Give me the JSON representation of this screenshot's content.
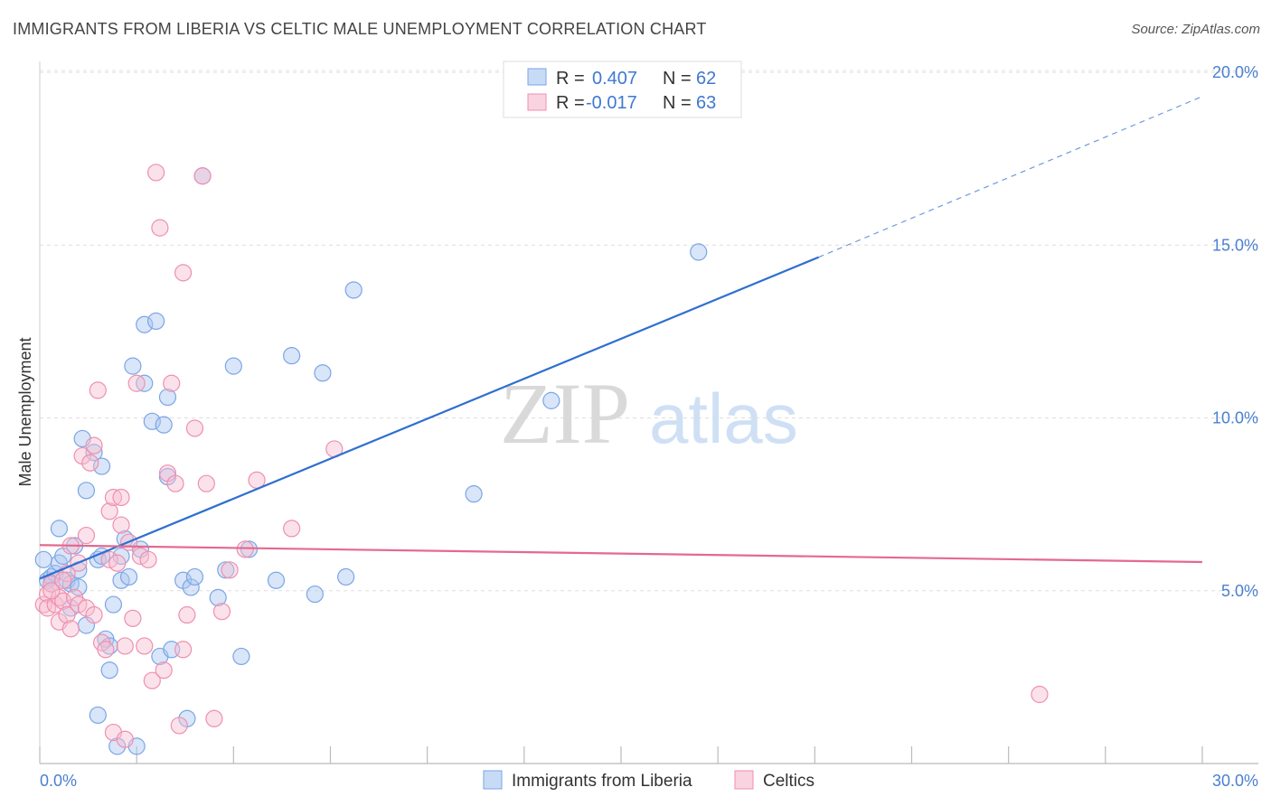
{
  "header": {
    "title": "IMMIGRANTS FROM LIBERIA VS CELTIC MALE UNEMPLOYMENT CORRELATION CHART",
    "source": "Source: ZipAtlas.com"
  },
  "watermark": {
    "zip": "ZIP",
    "atlas": "atlas"
  },
  "chart_data": {
    "type": "scatter",
    "ylabel": "Male Unemployment",
    "xlim": [
      0,
      30
    ],
    "ylim": [
      0,
      20
    ],
    "x_tick_labels": [
      "0.0%",
      "30.0%"
    ],
    "y_ticks": [
      5,
      10,
      15,
      20
    ],
    "y_tick_labels": [
      "5.0%",
      "10.0%",
      "15.0%",
      "20.0%"
    ],
    "grid": true,
    "legend_top": [
      {
        "r_label": "R =",
        "r_value": "0.407",
        "n_label": "N =",
        "n_value": "62",
        "color": "#7aa6e6"
      },
      {
        "r_label": "R =",
        "r_value": "-0.017",
        "n_label": "N =",
        "n_value": "63",
        "color": "#ef8fb0"
      }
    ],
    "series": [
      {
        "name": "Immigrants from Liberia",
        "fill": "#aac6f0",
        "stroke": "#7aa6e6",
        "line_color": "#2e6fd0",
        "trend": {
          "x0": 0,
          "y0": 5.35,
          "x1": 20.1,
          "y1": 14.65,
          "dash_to_x": 30,
          "dash_to_y": 19.3
        },
        "points": [
          [
            0.2,
            5.3
          ],
          [
            0.3,
            5.4
          ],
          [
            0.4,
            5.5
          ],
          [
            0.5,
            6.8
          ],
          [
            0.5,
            5.8
          ],
          [
            0.6,
            6.0
          ],
          [
            0.7,
            5.3
          ],
          [
            0.8,
            4.5
          ],
          [
            0.8,
            5.2
          ],
          [
            0.9,
            6.3
          ],
          [
            1.0,
            5.6
          ],
          [
            1.0,
            5.1
          ],
          [
            1.1,
            9.4
          ],
          [
            1.2,
            7.9
          ],
          [
            1.2,
            4.0
          ],
          [
            1.4,
            9.0
          ],
          [
            1.5,
            1.4
          ],
          [
            1.5,
            5.9
          ],
          [
            1.6,
            8.6
          ],
          [
            1.6,
            6.0
          ],
          [
            1.7,
            3.6
          ],
          [
            1.8,
            3.4
          ],
          [
            1.8,
            2.7
          ],
          [
            1.9,
            4.6
          ],
          [
            2.0,
            0.5
          ],
          [
            2.1,
            5.3
          ],
          [
            2.1,
            6.0
          ],
          [
            2.2,
            6.5
          ],
          [
            2.3,
            5.4
          ],
          [
            2.4,
            11.5
          ],
          [
            2.5,
            0.5
          ],
          [
            2.6,
            6.2
          ],
          [
            2.7,
            11.0
          ],
          [
            2.7,
            12.7
          ],
          [
            2.9,
            9.9
          ],
          [
            3.0,
            12.8
          ],
          [
            3.1,
            3.1
          ],
          [
            3.2,
            9.8
          ],
          [
            3.3,
            8.3
          ],
          [
            3.3,
            10.6
          ],
          [
            3.4,
            3.3
          ],
          [
            3.7,
            5.3
          ],
          [
            3.8,
            1.3
          ],
          [
            3.9,
            5.1
          ],
          [
            4.0,
            5.4
          ],
          [
            4.2,
            17.0
          ],
          [
            4.6,
            4.8
          ],
          [
            4.8,
            5.6
          ],
          [
            5.0,
            11.5
          ],
          [
            5.2,
            3.1
          ],
          [
            5.4,
            6.2
          ],
          [
            6.1,
            5.3
          ],
          [
            6.5,
            11.8
          ],
          [
            7.1,
            4.9
          ],
          [
            7.3,
            11.3
          ],
          [
            7.9,
            5.4
          ],
          [
            8.1,
            13.7
          ],
          [
            11.2,
            7.8
          ],
          [
            13.2,
            10.5
          ],
          [
            17.0,
            14.8
          ],
          [
            0.1,
            5.9
          ],
          [
            0.3,
            5.2
          ]
        ]
      },
      {
        "name": "Celtics",
        "fill": "#f7bfd1",
        "stroke": "#ef8fb0",
        "line_color": "#e4698f",
        "trend": {
          "x0": 0,
          "y0": 6.32,
          "x1": 30,
          "y1": 5.83
        },
        "points": [
          [
            0.1,
            4.6
          ],
          [
            0.2,
            4.9
          ],
          [
            0.2,
            4.5
          ],
          [
            0.3,
            5.2
          ],
          [
            0.4,
            4.6
          ],
          [
            0.5,
            4.8
          ],
          [
            0.5,
            4.1
          ],
          [
            0.6,
            4.7
          ],
          [
            0.7,
            4.3
          ],
          [
            0.7,
            5.5
          ],
          [
            0.8,
            6.3
          ],
          [
            0.8,
            3.9
          ],
          [
            0.9,
            4.8
          ],
          [
            1.0,
            5.8
          ],
          [
            1.0,
            4.6
          ],
          [
            1.1,
            8.9
          ],
          [
            1.2,
            6.6
          ],
          [
            1.2,
            4.5
          ],
          [
            1.3,
            8.7
          ],
          [
            1.4,
            9.2
          ],
          [
            1.4,
            4.3
          ],
          [
            1.5,
            10.8
          ],
          [
            1.6,
            3.5
          ],
          [
            1.7,
            3.3
          ],
          [
            1.8,
            7.3
          ],
          [
            1.8,
            5.9
          ],
          [
            1.9,
            7.7
          ],
          [
            2.0,
            5.8
          ],
          [
            2.1,
            6.9
          ],
          [
            2.1,
            7.7
          ],
          [
            2.2,
            3.4
          ],
          [
            2.3,
            6.4
          ],
          [
            2.4,
            4.2
          ],
          [
            2.5,
            11.0
          ],
          [
            2.6,
            6.0
          ],
          [
            2.7,
            3.4
          ],
          [
            2.8,
            5.9
          ],
          [
            2.9,
            2.4
          ],
          [
            3.0,
            17.1
          ],
          [
            3.1,
            15.5
          ],
          [
            3.2,
            2.7
          ],
          [
            3.3,
            8.4
          ],
          [
            3.4,
            11.0
          ],
          [
            3.5,
            8.1
          ],
          [
            3.6,
            1.1
          ],
          [
            3.7,
            3.3
          ],
          [
            3.7,
            14.2
          ],
          [
            3.8,
            4.3
          ],
          [
            4.0,
            9.7
          ],
          [
            4.2,
            17.0
          ],
          [
            4.3,
            8.1
          ],
          [
            4.5,
            1.3
          ],
          [
            4.7,
            4.4
          ],
          [
            4.9,
            5.6
          ],
          [
            5.3,
            6.2
          ],
          [
            5.6,
            8.2
          ],
          [
            6.5,
            6.8
          ],
          [
            7.6,
            9.1
          ],
          [
            1.9,
            0.9
          ],
          [
            2.2,
            0.7
          ],
          [
            25.8,
            2.0
          ],
          [
            0.3,
            5.0
          ],
          [
            0.6,
            5.3
          ]
        ]
      }
    ]
  }
}
